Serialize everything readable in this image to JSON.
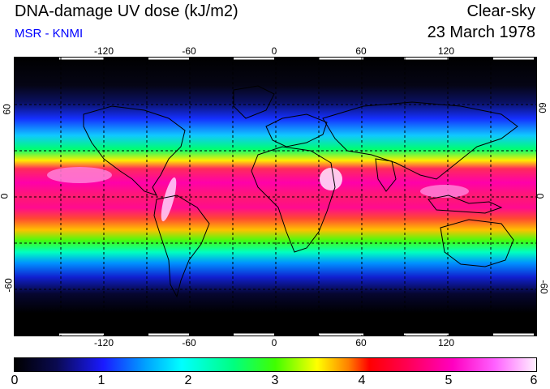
{
  "header": {
    "title": "DNA-damage UV dose (kJ/m2)",
    "subtitle": "MSR - KNMI",
    "condition": "Clear-sky",
    "date": "23 March 1978"
  },
  "map": {
    "longitude_ticks": [
      "-120",
      "-60",
      "0",
      "60",
      "120"
    ],
    "latitude_ticks": [
      "60",
      "0",
      "-60"
    ],
    "gridline_color": "#000000",
    "colormap": [
      "#000000",
      "#1a1aff",
      "#00ffff",
      "#40ff00",
      "#ffff00",
      "#ff0000",
      "#ff00c0",
      "#fff0ff"
    ]
  },
  "colorbar": {
    "labels": [
      "0",
      "1",
      "2",
      "3",
      "4",
      "5",
      "6"
    ],
    "min": 0,
    "max": 6
  }
}
